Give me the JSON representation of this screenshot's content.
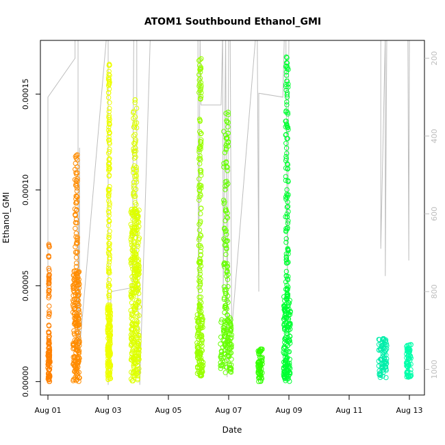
{
  "chart_data": {
    "type": "scatter",
    "title": "ATOM1 Southbound Ethanol_GMI",
    "xlabel": "Date",
    "ylabel": "Ethanol_GMI",
    "xlim": [
      -0.25,
      12.5
    ],
    "ylim": [
      -7e-06,
      0.000178
    ],
    "x_ticks": [
      {
        "value": 0,
        "label": "Aug 01"
      },
      {
        "value": 2,
        "label": "Aug 03"
      },
      {
        "value": 4,
        "label": "Aug 05"
      },
      {
        "value": 6,
        "label": "Aug 07"
      },
      {
        "value": 8,
        "label": "Aug 09"
      },
      {
        "value": 10,
        "label": "Aug 11"
      },
      {
        "value": 12,
        "label": "Aug 13"
      }
    ],
    "y_ticks": [
      {
        "value": 0.0,
        "label": "0.00000"
      },
      {
        "value": 5e-05,
        "label": "0.00005"
      },
      {
        "value": 0.0001,
        "label": "0.00010"
      },
      {
        "value": 0.00015,
        "label": "0.00015"
      }
    ],
    "right_axis": {
      "color": "#bdbdbd",
      "ylim": [
        1066,
        154
      ],
      "ticks": [
        {
          "value": 200,
          "label": "200"
        },
        {
          "value": 400,
          "label": "400"
        },
        {
          "value": 600,
          "label": "600"
        },
        {
          "value": 800,
          "label": "800"
        },
        {
          "value": 1000,
          "label": "1000"
        }
      ]
    },
    "grid": false,
    "legend": "none",
    "clusters": [
      {
        "x_start": 0.0,
        "x_end": 0.07,
        "y_min": 0.0,
        "y_max": 7.2e-05,
        "dense_max": 2e-05,
        "color": "#ff8000"
      },
      {
        "x_start": 0.83,
        "x_end": 1.05,
        "y_min": 0.0,
        "y_max": 0.000119,
        "dense_max": 5.8e-05,
        "color": "#ff8c00"
      },
      {
        "x_start": 1.98,
        "x_end": 2.08,
        "y_min": 0.0,
        "y_max": 0.000166,
        "dense_max": 4e-05,
        "color": "#eeff00"
      },
      {
        "x_start": 2.75,
        "x_end": 3.03,
        "y_min": 0.0,
        "y_max": 0.000148,
        "dense_max": 9e-05,
        "color": "#ddff00"
      },
      {
        "x_start": 4.95,
        "x_end": 5.15,
        "y_min": 3e-06,
        "y_max": 0.000169,
        "dense_max": 3.5e-05,
        "color": "#99ff00"
      },
      {
        "x_start": 5.72,
        "x_end": 6.1,
        "y_min": 4e-06,
        "y_max": 0.000141,
        "dense_max": 3.5e-05,
        "color": "#66ff00"
      },
      {
        "x_start": 6.97,
        "x_end": 7.12,
        "y_min": 0.0,
        "y_max": 1.7e-05,
        "dense_max": 1.7e-05,
        "color": "#33ff00"
      },
      {
        "x_start": 7.82,
        "x_end": 8.05,
        "y_min": 0.0,
        "y_max": 0.00017,
        "dense_max": 4.5e-05,
        "color": "#00ff33"
      },
      {
        "x_start": 10.97,
        "x_end": 11.25,
        "y_min": 2e-06,
        "y_max": 2.3e-05,
        "dense_max": 2.3e-05,
        "color": "#00eeaa"
      },
      {
        "x_start": 11.9,
        "x_end": 12.06,
        "y_min": 2e-06,
        "y_max": 2e-05,
        "dense_max": 2e-05,
        "color": "#00ffaa"
      }
    ],
    "secondary_line": {
      "color": "#bdbdbd",
      "points": [
        [
          0.0,
          600
        ],
        [
          0.0,
          795
        ],
        [
          0.0,
          300
        ],
        [
          0.9,
          200
        ],
        [
          0.9,
          140
        ],
        [
          1.0,
          140
        ],
        [
          1.0,
          950
        ],
        [
          1.05,
          430
        ],
        [
          1.05,
          950
        ],
        [
          1.95,
          140
        ],
        [
          2.0,
          140
        ],
        [
          2.0,
          1040
        ],
        [
          2.1,
          800
        ],
        [
          2.8,
          790
        ],
        [
          2.85,
          140
        ],
        [
          2.95,
          140
        ],
        [
          2.95,
          700
        ],
        [
          3.05,
          1040
        ],
        [
          3.4,
          140
        ],
        [
          4.9,
          140
        ],
        [
          4.98,
          140
        ],
        [
          5.0,
          900
        ],
        [
          5.05,
          140
        ],
        [
          5.08,
          320
        ],
        [
          5.75,
          320
        ],
        [
          5.8,
          140
        ],
        [
          5.82,
          800
        ],
        [
          5.9,
          140
        ],
        [
          5.95,
          1020
        ],
        [
          6.0,
          140
        ],
        [
          6.05,
          140
        ],
        [
          6.1,
          900
        ],
        [
          6.9,
          140
        ],
        [
          6.95,
          140
        ],
        [
          7.0,
          800
        ],
        [
          7.0,
          290
        ],
        [
          7.8,
          300
        ],
        [
          7.85,
          140
        ],
        [
          7.9,
          140
        ],
        [
          7.95,
          780
        ],
        [
          8.0,
          140
        ],
        [
          11.05,
          140
        ],
        [
          11.05,
          690
        ],
        [
          11.2,
          140
        ],
        [
          11.2,
          760
        ],
        [
          11.25,
          140
        ],
        [
          11.95,
          140
        ],
        [
          11.98,
          720
        ],
        [
          12.0,
          140
        ]
      ]
    }
  }
}
